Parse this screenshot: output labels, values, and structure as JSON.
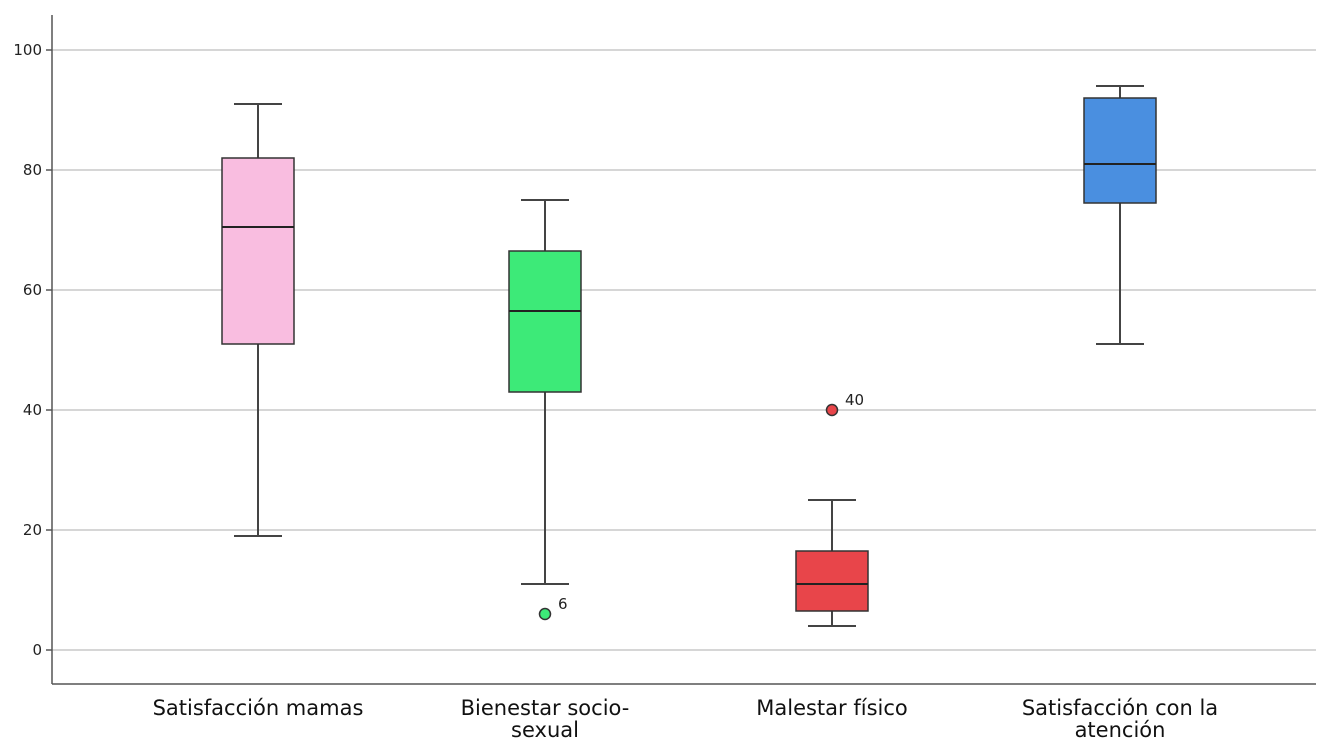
{
  "chart_data": {
    "type": "boxplot",
    "title": "",
    "xlabel": "",
    "ylabel": "",
    "ylim": [
      -5,
      105
    ],
    "yticks": [
      0,
      20,
      40,
      60,
      80,
      100
    ],
    "grid": true,
    "legend": "none",
    "categories": [
      {
        "label_lines": [
          "Satisfacción mamas"
        ],
        "color": "#f9bde0",
        "min": 19,
        "q1": 51,
        "median": 70.5,
        "q3": 82,
        "max": 91,
        "outliers": []
      },
      {
        "label_lines": [
          "Bienestar socio-",
          "sexual"
        ],
        "color": "#3dea78",
        "min": 11,
        "q1": 43,
        "median": 56.5,
        "q3": 66.5,
        "max": 75,
        "outliers": [
          {
            "value": 6,
            "label": "6"
          }
        ]
      },
      {
        "label_lines": [
          "Malestar físico"
        ],
        "color": "#e8454a",
        "min": 4,
        "q1": 6.5,
        "median": 11,
        "q3": 16.5,
        "max": 25,
        "outliers": [
          {
            "value": 40,
            "label": "40"
          }
        ]
      },
      {
        "label_lines": [
          "Satisfacción con la",
          "atención"
        ],
        "color": "#4a8fe0",
        "min": 51,
        "q1": 74.5,
        "median": 81,
        "q3": 92,
        "max": 94,
        "outliers": []
      }
    ]
  }
}
